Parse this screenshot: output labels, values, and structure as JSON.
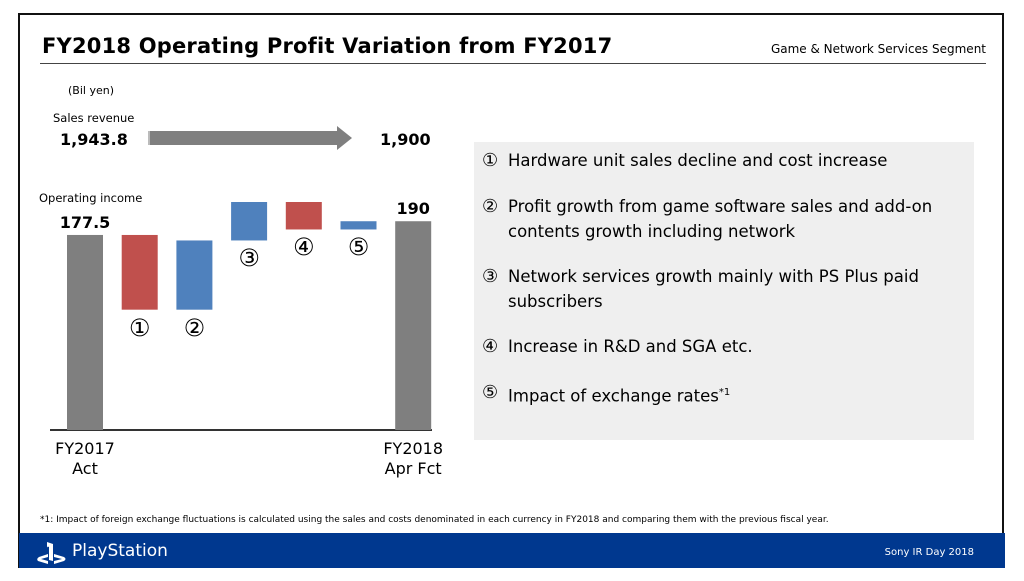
{
  "header": {
    "title": "FY2018 Operating Profit Variation from FY2017",
    "segment": "Game & Network Services Segment"
  },
  "unit": "(Bil yen)",
  "sales": {
    "label": "Sales revenue",
    "from": "1,943.8",
    "to": "1,900"
  },
  "chart_data": {
    "type": "waterfall",
    "y_label": "Operating income",
    "categories": [
      "FY2017\nAct",
      "①",
      "②",
      "③",
      "④",
      "⑤",
      "FY2018\nApr Fct"
    ],
    "values": [
      177.5,
      -68,
      63,
      35,
      -25,
      7.5,
      190
    ],
    "value_labels": [
      "177.5",
      null,
      null,
      null,
      null,
      null,
      "190"
    ],
    "colors": {
      "total": "#7f7f7f",
      "decrease": "#c0504d",
      "increase": "#4f81bd"
    }
  },
  "items": [
    {
      "marker": "①",
      "text": "Hardware unit sales decline and cost increase"
    },
    {
      "marker": "②",
      "text": "Profit growth from game software sales and add-on contents growth including network"
    },
    {
      "marker": "③",
      "text": "Network services growth mainly with PS Plus paid subscribers"
    },
    {
      "marker": "④",
      "text": "Increase in R&D and SGA etc."
    },
    {
      "marker": "⑤",
      "text": "Impact of exchange rates",
      "note_ref": "*1"
    }
  ],
  "footnote": "*1: Impact of foreign exchange fluctuations is calculated using the sales and costs denominated in each currency in FY2018 and comparing them with the previous fiscal year.",
  "footer": {
    "brand": "PlayStation",
    "event": "Sony IR Day 2018"
  }
}
